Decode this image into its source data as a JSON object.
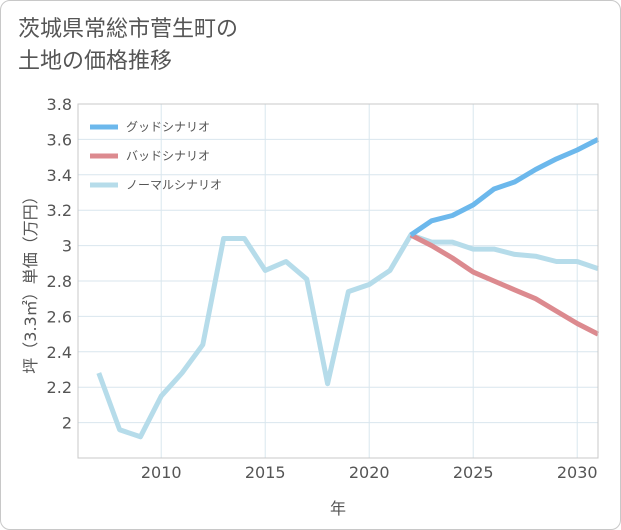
{
  "title_lines": [
    "茨城県常総市菅生町の",
    "土地の価格推移"
  ],
  "chart_data": {
    "type": "line",
    "xlabel": "年",
    "ylabel": "坪（3.3㎡）単価（万円）",
    "xlim": [
      2006,
      2031
    ],
    "ylim": [
      1.8,
      3.8
    ],
    "xticks": [
      2010,
      2015,
      2020,
      2025,
      2030
    ],
    "yticks": [
      2,
      2.2,
      2.4,
      2.6,
      2.8,
      3,
      3.2,
      3.4,
      3.6,
      3.8
    ],
    "ytick_labels": [
      "2",
      "2.2",
      "2.4",
      "2.6",
      "2.8",
      "3",
      "3.2",
      "3.4",
      "3.6",
      "3.8"
    ],
    "grid": true,
    "legend_position": "top-left",
    "series": [
      {
        "name": "グッドシナリオ",
        "color": "#6cb8ec",
        "x": [
          2022,
          2023,
          2024,
          2025,
          2026,
          2027,
          2028,
          2029,
          2030,
          2031
        ],
        "y": [
          3.06,
          3.14,
          3.17,
          3.23,
          3.32,
          3.36,
          3.43,
          3.49,
          3.54,
          3.6
        ]
      },
      {
        "name": "バッドシナリオ",
        "color": "#dc8a8f",
        "x": [
          2022,
          2023,
          2024,
          2025,
          2026,
          2027,
          2028,
          2029,
          2030,
          2031
        ],
        "y": [
          3.06,
          3.0,
          2.93,
          2.85,
          2.8,
          2.75,
          2.7,
          2.63,
          2.56,
          2.5
        ]
      },
      {
        "name": "ノーマルシナリオ",
        "color": "#b6dcea",
        "x": [
          2007,
          2008,
          2009,
          2010,
          2011,
          2012,
          2013,
          2014,
          2015,
          2016,
          2017,
          2018,
          2019,
          2020,
          2021,
          2022,
          2023,
          2024,
          2025,
          2026,
          2027,
          2028,
          2029,
          2030,
          2031
        ],
        "y": [
          2.28,
          1.96,
          1.92,
          2.15,
          2.28,
          2.44,
          3.04,
          3.04,
          2.86,
          2.91,
          2.81,
          2.22,
          2.74,
          2.78,
          2.86,
          3.06,
          3.02,
          3.02,
          2.98,
          2.98,
          2.95,
          2.94,
          2.91,
          2.91,
          2.87
        ]
      }
    ]
  }
}
